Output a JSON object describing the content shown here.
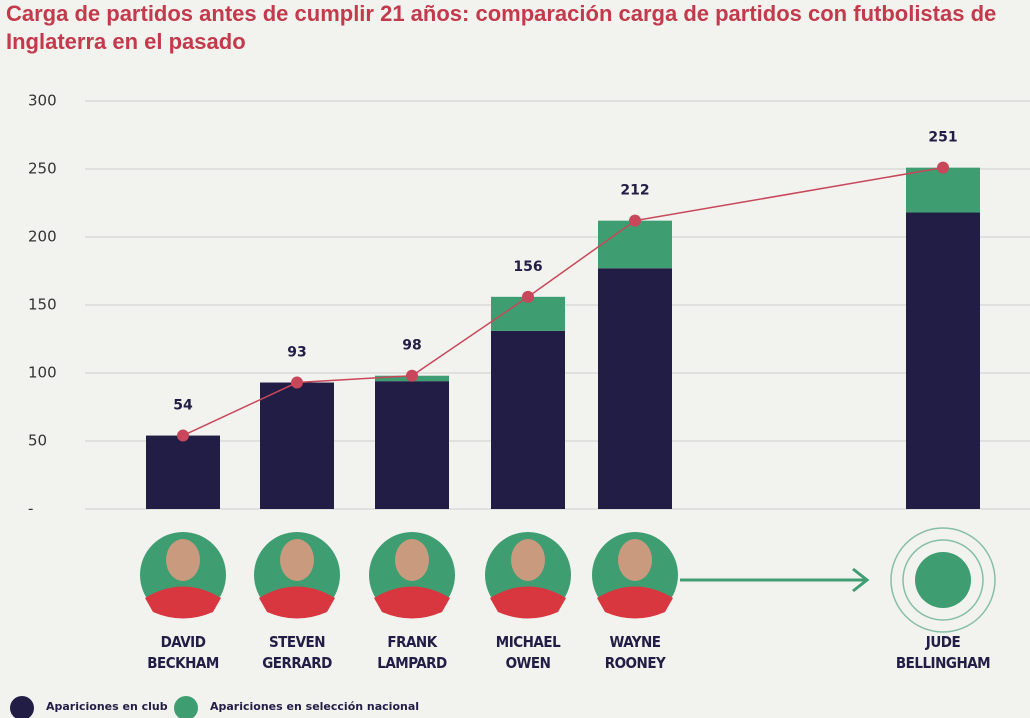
{
  "chart_data": {
    "type": "stacked-bar-line",
    "title": "Carga de partidos antes de cumplir 21 años: comparación carga de partidos con futbolistas de Inglaterra en el pasado",
    "categories": [
      "DAVID BECKHAM",
      "STEVEN GERRARD",
      "FRANK LAMPARD",
      "MICHAEL OWEN",
      "WAYNE ROONEY",
      "JUDE BELLINGHAM"
    ],
    "series": [
      {
        "name": "Apariciones en club",
        "color": "#221d45",
        "values": [
          54,
          93,
          94,
          131,
          177,
          218
        ]
      },
      {
        "name": "Apariciones en selección nacional",
        "color": "#3f9d72",
        "values": [
          0,
          0,
          4,
          25,
          35,
          33
        ]
      }
    ],
    "line": {
      "color": "#c8475a",
      "values": [
        54,
        93,
        98,
        156,
        212,
        251
      ]
    },
    "ylim": [
      0,
      300
    ],
    "yticks": [
      {
        "value": 0,
        "label": "-"
      },
      50,
      100,
      150,
      200,
      250,
      300
    ],
    "grid": true
  }
}
